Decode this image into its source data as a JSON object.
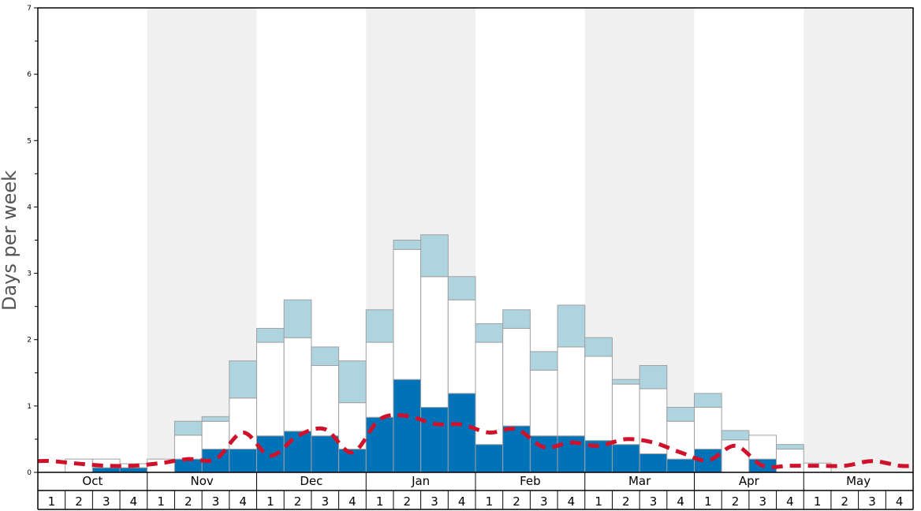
{
  "chart_data": {
    "type": "bar",
    "ylabel": "Days per week",
    "ylim": [
      0,
      7
    ],
    "yticks": [
      0,
      1,
      2,
      3,
      4,
      5,
      6,
      7
    ],
    "months": [
      "Oct",
      "Nov",
      "Dec",
      "Jan",
      "Feb",
      "Mar",
      "Apr",
      "May"
    ],
    "weeks": [
      "1",
      "2",
      "3",
      "4"
    ],
    "grid": false,
    "stacked": true,
    "series": [
      {
        "color": "#0072b8",
        "values": [
          0,
          0,
          0.07,
          0.07,
          0,
          0.2,
          0.35,
          0.35,
          0.55,
          0.62,
          0.55,
          0.35,
          0.83,
          1.4,
          0.98,
          1.19,
          0.42,
          0.7,
          0.55,
          0.55,
          0.48,
          0.42,
          0.28,
          0.2,
          0.35,
          0,
          0.2,
          0,
          0,
          0,
          0,
          0
        ]
      },
      {
        "color": "#ffffff",
        "values": [
          0,
          0.2,
          0.13,
          0.06,
          0.2,
          0.36,
          0.42,
          0.77,
          1.41,
          1.41,
          1.06,
          0.7,
          1.13,
          1.96,
          1.97,
          1.41,
          1.54,
          1.47,
          0.99,
          1.34,
          1.27,
          0.91,
          0.98,
          0.57,
          0.63,
          0.49,
          0.36,
          0.35,
          0.14,
          0,
          0,
          0
        ]
      },
      {
        "color": "#aed4e0",
        "values": [
          0,
          0,
          0,
          0,
          0,
          0.21,
          0.07,
          0.56,
          0.21,
          0.57,
          0.28,
          0.63,
          0.49,
          0.14,
          0.63,
          0.35,
          0.28,
          0.28,
          0.28,
          0.63,
          0.28,
          0.07,
          0.35,
          0.21,
          0.21,
          0.14,
          0,
          0.07,
          0,
          0,
          0,
          0
        ]
      }
    ],
    "average_line": {
      "color": "#d0112b",
      "values": [
        0.17,
        0.13,
        0.1,
        0.1,
        0.14,
        0.2,
        0.2,
        0.6,
        0.25,
        0.55,
        0.65,
        0.3,
        0.8,
        0.85,
        0.73,
        0.72,
        0.6,
        0.65,
        0.38,
        0.45,
        0.4,
        0.5,
        0.45,
        0.3,
        0.18,
        0.4,
        0.1,
        0.1,
        0.1,
        0.1,
        0.17,
        0.1
      ]
    }
  }
}
